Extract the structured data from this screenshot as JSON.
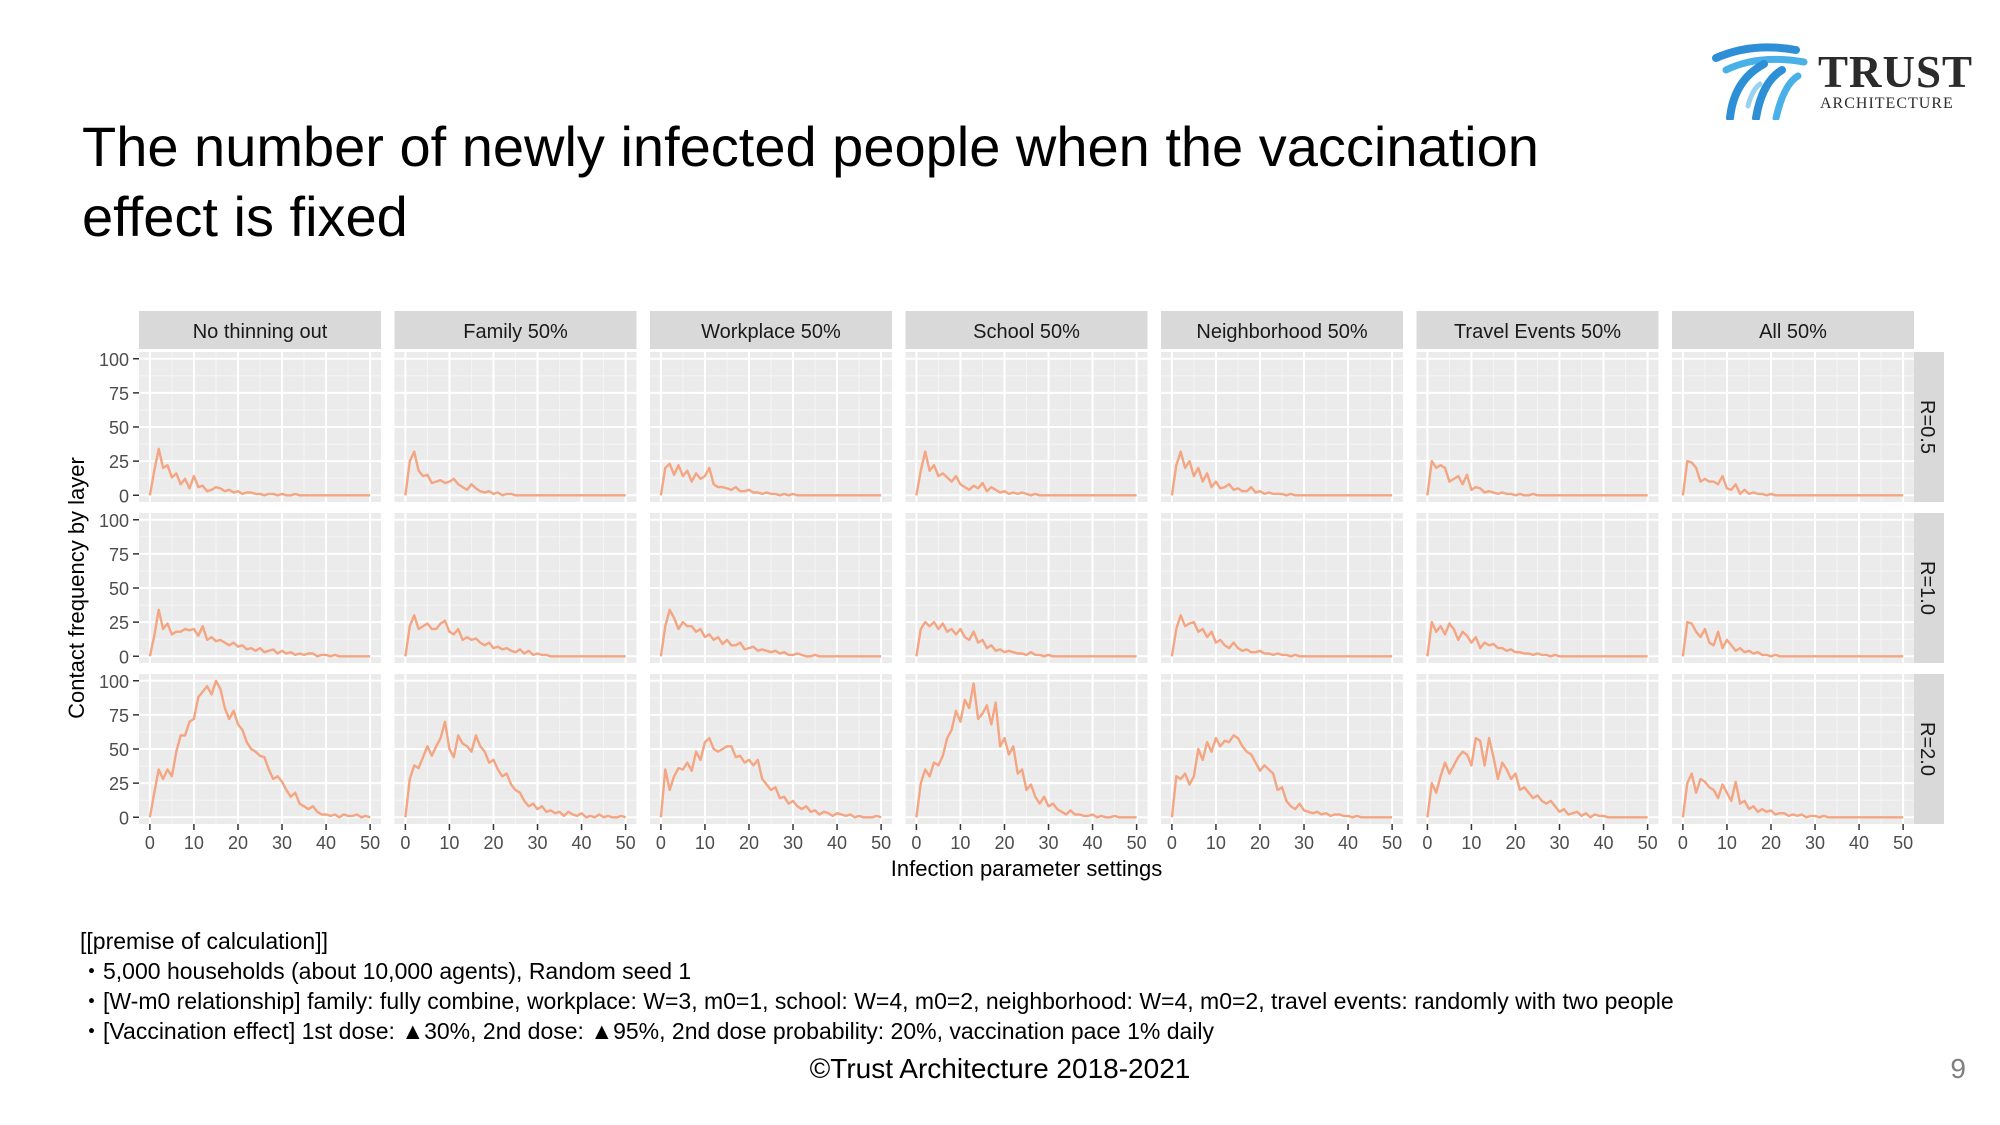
{
  "slide": {
    "title": "The number of newly infected people when the vaccination\neffect is fixed",
    "logo": {
      "word": "TRUST",
      "sub": "ARCHITECTURE"
    },
    "premise_lines": [
      "[[premise of calculation]]",
      "・5,000 households (about 10,000 agents), Random seed 1",
      "・[W-m0 relationship] family: fully combine, workplace: W=3, m0=1, school: W=4, m0=2, neighborhood: W=4, m0=2, travel events: randomly with two people",
      "・[Vaccination effect] 1st dose: ▲30%, 2nd dose: ▲95%, 2nd dose probability: 20%, vaccination pace 1% daily"
    ],
    "copyright": "©Trust Architecture 2018-2021",
    "page_number": "9"
  },
  "chart_data": {
    "type": "line",
    "xlabel": "Infection parameter settings",
    "ylabel": "Contact frequency by layer",
    "xlim": [
      0,
      50
    ],
    "ylim": [
      0,
      100
    ],
    "x_ticks": [
      0,
      10,
      20,
      30,
      40,
      50
    ],
    "y_ticks": [
      0,
      25,
      50,
      75,
      100
    ],
    "grid": true,
    "line_color": "#f4a582",
    "columns": [
      "No thinning out",
      "Family 50%",
      "Workplace 50%",
      "School 50%",
      "Neighborhood 50%",
      "Travel Events 50%",
      "All 50%"
    ],
    "rows": [
      "R=0.5",
      "R=1.0",
      "R=2.0"
    ],
    "x": [
      0,
      1,
      2,
      3,
      4,
      5,
      6,
      7,
      8,
      9,
      10,
      11,
      12,
      13,
      14,
      15,
      16,
      17,
      18,
      19,
      20,
      21,
      22,
      23,
      24,
      25,
      26,
      27,
      28,
      29,
      30,
      31,
      32,
      33,
      34,
      35,
      36,
      37,
      38,
      39,
      40,
      41,
      42,
      43,
      44,
      45,
      46,
      47,
      48,
      49,
      50
    ],
    "panels": [
      [
        [
          0,
          18,
          34,
          20,
          22,
          13,
          16,
          8,
          12,
          5,
          14,
          6,
          7,
          3,
          4,
          6,
          5,
          3,
          4,
          2,
          3,
          1,
          2,
          2,
          1,
          1,
          0,
          1,
          1,
          0,
          1,
          0,
          0,
          1,
          0,
          0,
          0,
          0,
          0,
          0,
          0,
          0,
          0,
          0,
          0,
          0,
          0,
          0,
          0,
          0,
          0
        ],
        [
          0,
          15,
          34,
          20,
          24,
          16,
          18,
          18,
          20,
          19,
          20,
          15,
          22,
          12,
          14,
          11,
          12,
          10,
          8,
          10,
          7,
          8,
          5,
          6,
          4,
          6,
          3,
          4,
          5,
          2,
          4,
          2,
          3,
          1,
          2,
          1,
          2,
          2,
          0,
          1,
          1,
          0,
          1,
          0,
          0,
          0,
          0,
          0,
          0,
          0,
          0
        ],
        [
          0,
          18,
          35,
          28,
          35,
          30,
          48,
          60,
          60,
          70,
          72,
          88,
          92,
          96,
          90,
          100,
          94,
          80,
          72,
          78,
          68,
          64,
          55,
          50,
          48,
          45,
          44,
          35,
          28,
          30,
          26,
          20,
          15,
          18,
          10,
          8,
          6,
          8,
          4,
          2,
          2,
          1,
          2,
          0,
          2,
          1,
          1,
          2,
          0,
          1,
          0
        ]
      ],
      [
        [
          0,
          25,
          32,
          18,
          14,
          15,
          9,
          10,
          11,
          9,
          10,
          12,
          8,
          6,
          4,
          8,
          5,
          3,
          2,
          3,
          1,
          2,
          0,
          1,
          1,
          0,
          0,
          0,
          0,
          0,
          0,
          0,
          0,
          0,
          0,
          0,
          0,
          0,
          0,
          0,
          0,
          0,
          0,
          0,
          0,
          0,
          0,
          0,
          0,
          0,
          0
        ],
        [
          0,
          22,
          30,
          20,
          22,
          24,
          20,
          20,
          24,
          26,
          18,
          16,
          20,
          12,
          14,
          12,
          13,
          10,
          8,
          10,
          6,
          7,
          5,
          6,
          4,
          3,
          5,
          2,
          4,
          1,
          2,
          1,
          1,
          0,
          0,
          0,
          0,
          0,
          0,
          0,
          0,
          0,
          0,
          0,
          0,
          0,
          0,
          0,
          0,
          0,
          0
        ],
        [
          0,
          28,
          38,
          36,
          44,
          52,
          45,
          52,
          58,
          70,
          50,
          44,
          60,
          54,
          52,
          48,
          60,
          52,
          48,
          40,
          42,
          35,
          30,
          32,
          24,
          20,
          18,
          12,
          8,
          10,
          6,
          8,
          4,
          5,
          3,
          4,
          1,
          4,
          2,
          1,
          3,
          0,
          1,
          0,
          2,
          0,
          1,
          0,
          0,
          1,
          0
        ]
      ],
      [
        [
          0,
          20,
          23,
          15,
          22,
          14,
          18,
          10,
          16,
          12,
          14,
          20,
          8,
          6,
          6,
          5,
          4,
          6,
          3,
          3,
          4,
          2,
          2,
          1,
          2,
          1,
          1,
          0,
          1,
          0,
          1,
          0,
          0,
          0,
          0,
          0,
          0,
          0,
          0,
          0,
          0,
          0,
          0,
          0,
          0,
          0,
          0,
          0,
          0,
          0,
          0
        ],
        [
          0,
          22,
          34,
          28,
          20,
          25,
          22,
          22,
          18,
          20,
          14,
          16,
          12,
          14,
          9,
          12,
          8,
          8,
          10,
          5,
          6,
          7,
          4,
          5,
          4,
          3,
          4,
          2,
          3,
          1,
          1,
          2,
          1,
          0,
          0,
          1,
          0,
          0,
          0,
          0,
          0,
          0,
          0,
          0,
          0,
          0,
          0,
          0,
          0,
          0,
          0
        ],
        [
          0,
          35,
          20,
          30,
          36,
          35,
          40,
          34,
          48,
          42,
          55,
          58,
          50,
          48,
          50,
          52,
          52,
          44,
          45,
          40,
          42,
          38,
          42,
          28,
          24,
          20,
          22,
          14,
          15,
          10,
          12,
          8,
          6,
          8,
          4,
          5,
          2,
          4,
          3,
          1,
          3,
          2,
          1,
          2,
          0,
          1,
          0,
          0,
          0,
          1,
          0
        ]
      ],
      [
        [
          0,
          18,
          32,
          18,
          22,
          14,
          16,
          13,
          10,
          14,
          8,
          6,
          4,
          7,
          5,
          9,
          3,
          6,
          4,
          2,
          3,
          1,
          2,
          1,
          2,
          1,
          0,
          1,
          0,
          0,
          0,
          0,
          0,
          0,
          0,
          0,
          0,
          0,
          0,
          0,
          0,
          0,
          0,
          0,
          0,
          0,
          0,
          0,
          0,
          0,
          0
        ],
        [
          0,
          20,
          25,
          22,
          25,
          20,
          24,
          18,
          20,
          16,
          20,
          14,
          12,
          18,
          10,
          12,
          6,
          8,
          4,
          5,
          3,
          4,
          3,
          2,
          2,
          1,
          3,
          1,
          1,
          0,
          1,
          0,
          0,
          0,
          0,
          0,
          0,
          0,
          0,
          0,
          0,
          0,
          0,
          0,
          0,
          0,
          0,
          0,
          0,
          0,
          0
        ],
        [
          0,
          25,
          35,
          30,
          40,
          38,
          45,
          58,
          64,
          78,
          70,
          86,
          80,
          98,
          72,
          76,
          82,
          68,
          84,
          52,
          58,
          46,
          52,
          32,
          35,
          20,
          24,
          15,
          10,
          15,
          8,
          10,
          6,
          4,
          2,
          5,
          2,
          2,
          1,
          1,
          2,
          0,
          1,
          0,
          0,
          1,
          0,
          0,
          0,
          0,
          0
        ]
      ],
      [
        [
          0,
          22,
          32,
          20,
          25,
          14,
          20,
          10,
          16,
          6,
          10,
          5,
          6,
          8,
          4,
          5,
          3,
          3,
          6,
          2,
          3,
          1,
          2,
          1,
          1,
          1,
          0,
          1,
          0,
          0,
          0,
          0,
          0,
          0,
          0,
          0,
          0,
          0,
          0,
          0,
          0,
          0,
          0,
          0,
          0,
          0,
          0,
          0,
          0,
          0,
          0
        ],
        [
          0,
          20,
          30,
          22,
          24,
          25,
          18,
          20,
          14,
          18,
          10,
          12,
          8,
          6,
          10,
          6,
          4,
          5,
          3,
          3,
          4,
          2,
          2,
          1,
          2,
          1,
          1,
          0,
          1,
          0,
          0,
          0,
          0,
          0,
          0,
          0,
          0,
          0,
          0,
          0,
          0,
          0,
          0,
          0,
          0,
          0,
          0,
          0,
          0,
          0,
          0
        ],
        [
          0,
          30,
          28,
          32,
          24,
          30,
          50,
          42,
          55,
          48,
          58,
          52,
          56,
          55,
          60,
          58,
          52,
          48,
          46,
          40,
          34,
          38,
          35,
          32,
          20,
          22,
          12,
          8,
          6,
          10,
          5,
          4,
          3,
          4,
          2,
          3,
          1,
          2,
          2,
          1,
          1,
          0,
          1,
          0,
          0,
          0,
          0,
          0,
          0,
          0,
          0
        ]
      ],
      [
        [
          0,
          25,
          20,
          22,
          20,
          10,
          12,
          14,
          8,
          15,
          4,
          6,
          5,
          2,
          3,
          2,
          1,
          2,
          1,
          1,
          0,
          1,
          0,
          0,
          1,
          0,
          0,
          0,
          0,
          0,
          0,
          0,
          0,
          0,
          0,
          0,
          0,
          0,
          0,
          0,
          0,
          0,
          0,
          0,
          0,
          0,
          0,
          0,
          0,
          0,
          0
        ],
        [
          0,
          25,
          18,
          22,
          16,
          24,
          20,
          12,
          18,
          15,
          10,
          14,
          6,
          10,
          8,
          9,
          6,
          6,
          4,
          5,
          3,
          3,
          2,
          2,
          1,
          2,
          1,
          1,
          0,
          1,
          0,
          0,
          0,
          0,
          0,
          0,
          0,
          0,
          0,
          0,
          0,
          0,
          0,
          0,
          0,
          0,
          0,
          0,
          0,
          0,
          0
        ],
        [
          0,
          25,
          18,
          30,
          40,
          32,
          38,
          44,
          48,
          46,
          38,
          58,
          56,
          38,
          58,
          44,
          28,
          40,
          35,
          28,
          32,
          20,
          22,
          18,
          14,
          16,
          12,
          10,
          12,
          8,
          4,
          6,
          2,
          3,
          4,
          1,
          3,
          0,
          2,
          1,
          1,
          0,
          0,
          0,
          0,
          0,
          0,
          0,
          0,
          0,
          0
        ]
      ],
      [
        [
          0,
          25,
          24,
          20,
          10,
          12,
          10,
          10,
          8,
          14,
          5,
          4,
          8,
          1,
          4,
          1,
          2,
          1,
          1,
          0,
          1,
          0,
          0,
          0,
          0,
          0,
          0,
          0,
          0,
          0,
          0,
          0,
          0,
          0,
          0,
          0,
          0,
          0,
          0,
          0,
          0,
          0,
          0,
          0,
          0,
          0,
          0,
          0,
          0,
          0,
          0
        ],
        [
          0,
          25,
          24,
          18,
          14,
          20,
          10,
          8,
          18,
          6,
          12,
          8,
          4,
          6,
          3,
          4,
          2,
          3,
          1,
          1,
          0,
          1,
          0,
          0,
          0,
          0,
          0,
          0,
          0,
          0,
          0,
          0,
          0,
          0,
          0,
          0,
          0,
          0,
          0,
          0,
          0,
          0,
          0,
          0,
          0,
          0,
          0,
          0,
          0,
          0,
          0
        ],
        [
          0,
          25,
          32,
          18,
          28,
          26,
          22,
          20,
          14,
          24,
          18,
          12,
          26,
          10,
          12,
          6,
          8,
          4,
          6,
          4,
          5,
          2,
          3,
          3,
          1,
          2,
          1,
          2,
          0,
          1,
          1,
          0,
          1,
          0,
          0,
          0,
          0,
          0,
          0,
          0,
          0,
          0,
          0,
          0,
          0,
          0,
          0,
          0,
          0,
          0,
          0
        ]
      ]
    ]
  }
}
